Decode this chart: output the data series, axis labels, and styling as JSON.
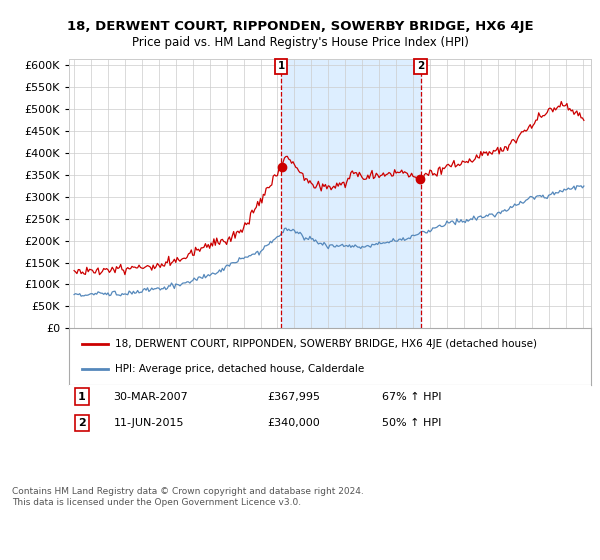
{
  "title": "18, DERWENT COURT, RIPPONDEN, SOWERBY BRIDGE, HX6 4JE",
  "subtitle": "Price paid vs. HM Land Registry's House Price Index (HPI)",
  "yticks": [
    0,
    50000,
    100000,
    150000,
    200000,
    250000,
    300000,
    350000,
    400000,
    450000,
    500000,
    550000,
    600000
  ],
  "ylim": [
    0,
    615000
  ],
  "xlim_left": 1994.7,
  "xlim_right": 2025.5,
  "legend_red": "18, DERWENT COURT, RIPPONDEN, SOWERBY BRIDGE, HX6 4JE (detached house)",
  "legend_blue": "HPI: Average price, detached house, Calderdale",
  "marker1_date": "30-MAR-2007",
  "marker1_price": "£367,995",
  "marker1_hpi": "67% ↑ HPI",
  "marker2_date": "11-JUN-2015",
  "marker2_price": "£340,000",
  "marker2_hpi": "50% ↑ HPI",
  "footnote": "Contains HM Land Registry data © Crown copyright and database right 2024.\nThis data is licensed under the Open Government Licence v3.0.",
  "marker1_x": 2007.22,
  "marker2_x": 2015.44,
  "red_color": "#cc0000",
  "blue_color": "#5588bb",
  "shade_color": "#ddeeff",
  "dashed_color": "#cc0000",
  "background_color": "#ffffff",
  "grid_color": "#cccccc",
  "marker1_val": 367995,
  "marker2_val": 340000
}
